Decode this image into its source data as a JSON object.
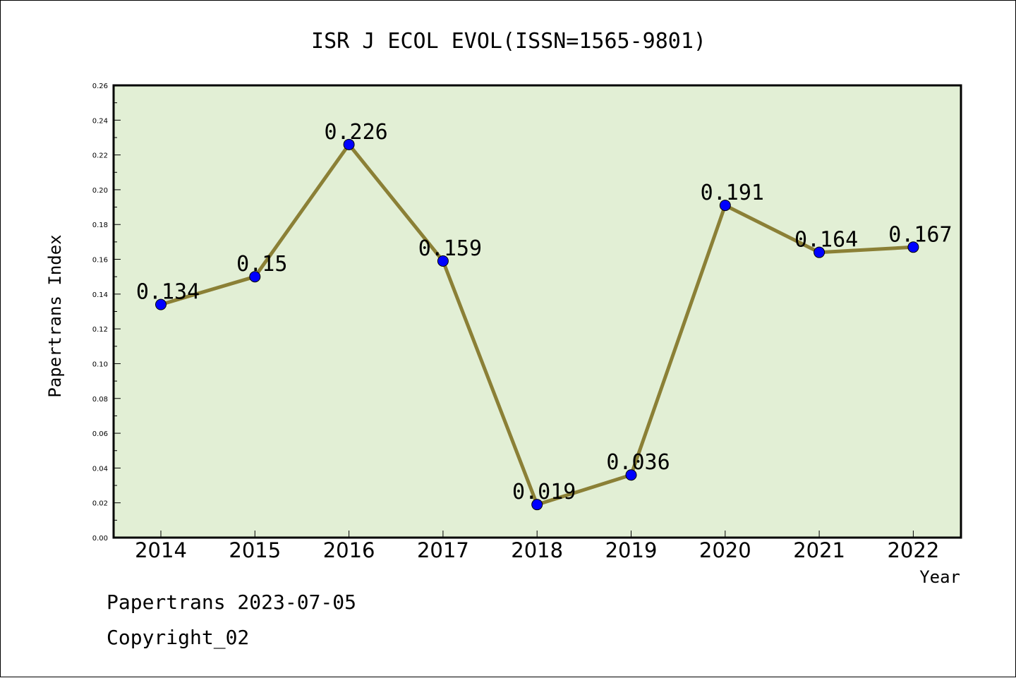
{
  "chart_data": {
    "type": "line",
    "title": "ISR J ECOL EVOL(ISSN=1565-9801)",
    "xlabel": "Year",
    "ylabel": "Papertrans Index",
    "categories": [
      "2014",
      "2015",
      "2016",
      "2017",
      "2018",
      "2019",
      "2020",
      "2021",
      "2022"
    ],
    "values": [
      0.134,
      0.15,
      0.226,
      0.159,
      0.019,
      0.036,
      0.191,
      0.164,
      0.167
    ],
    "data_labels": [
      "0.134",
      "0.15",
      "0.226",
      "0.159",
      "0.019",
      "0.036",
      "0.191",
      "0.164",
      "0.167"
    ],
    "ylim": [
      0,
      0.26
    ],
    "yticks": [
      "0.00",
      "0.02",
      "0.04",
      "0.06",
      "0.08",
      "0.10",
      "0.12",
      "0.14",
      "0.16",
      "0.18",
      "0.20",
      "0.22",
      "0.24",
      "0.26"
    ],
    "grid": false,
    "colors": {
      "plot_background": "#e2efd5",
      "line": "#8b8036",
      "marker": "#0000ff"
    }
  },
  "footer": {
    "line1": "Papertrans 2023-07-05",
    "line2": "Copyright_02"
  }
}
